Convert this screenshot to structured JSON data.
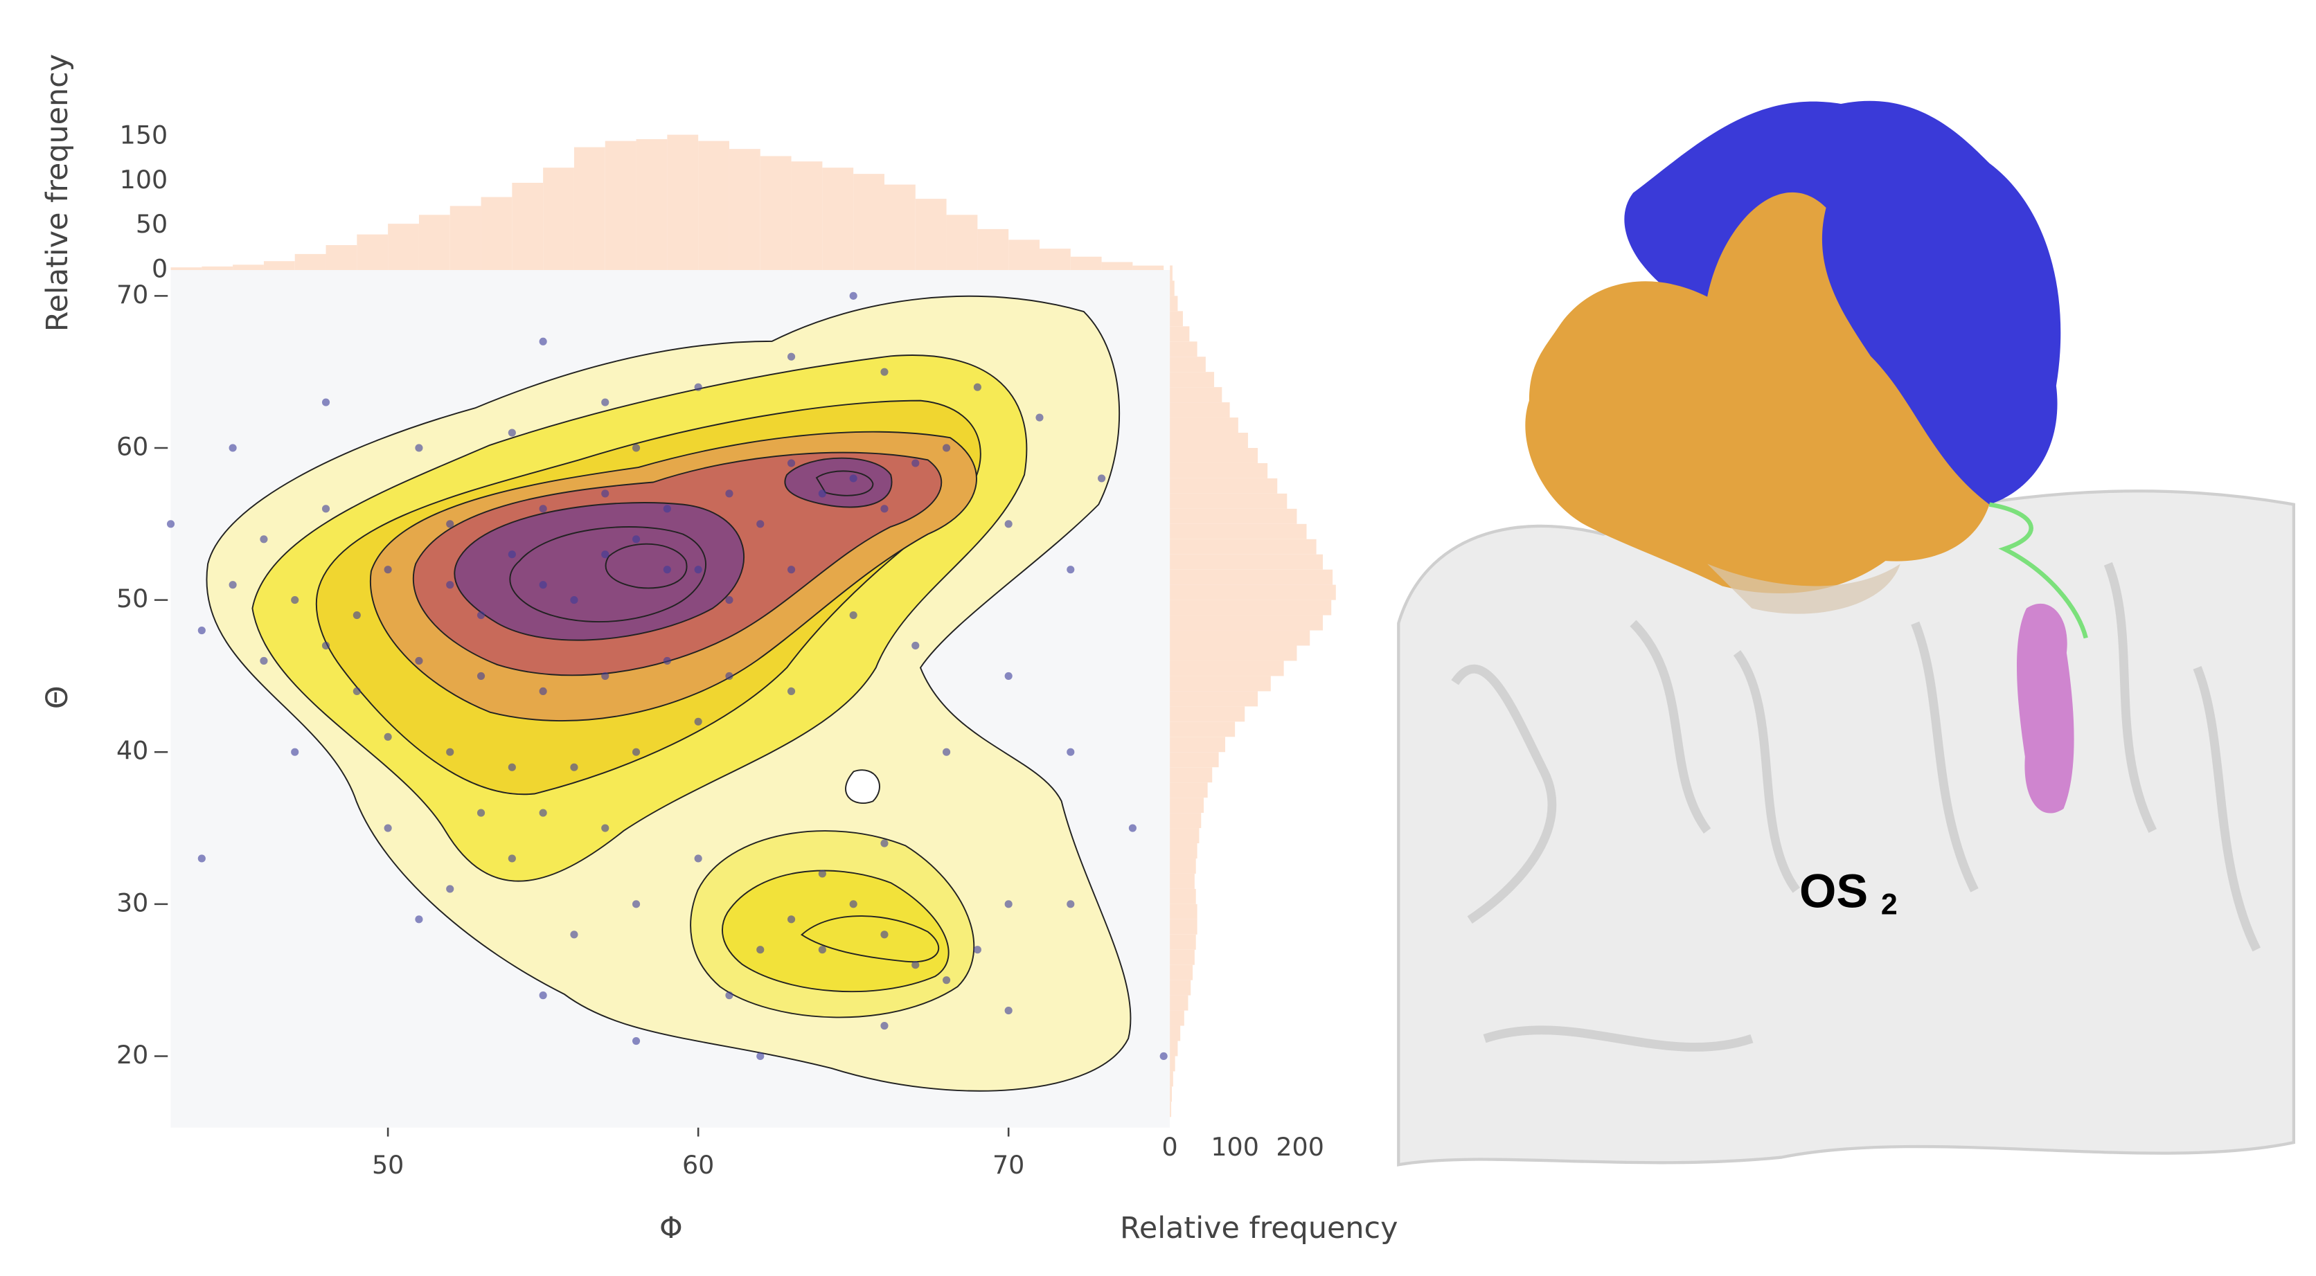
{
  "chart_data": [
    {
      "type": "scatter",
      "x_label": "Φ",
      "y_label": "Θ",
      "color": "#3c3c9a",
      "xlim": [
        43,
        75.2
      ],
      "ylim": [
        15.3,
        71.7
      ],
      "xticks": [
        50,
        60,
        70
      ],
      "yticks": [
        20,
        30,
        40,
        50,
        60,
        70
      ],
      "x": [
        59,
        57,
        55,
        56,
        58,
        60,
        61,
        54,
        53,
        52,
        62,
        64,
        65,
        66,
        67,
        68,
        63,
        61,
        59,
        57,
        55,
        52,
        50,
        49,
        48,
        47,
        46,
        51,
        53,
        55,
        57,
        59,
        61,
        63,
        60,
        58,
        56,
        54,
        52,
        50,
        64,
        66,
        67,
        65,
        63,
        62,
        68,
        69,
        70,
        61,
        64,
        60,
        58,
        56,
        54,
        52,
        55,
        53,
        57,
        66,
        71,
        73,
        72,
        69,
        66,
        63,
        60,
        57,
        54,
        51,
        48,
        46,
        45,
        44,
        49,
        47,
        50,
        51,
        55,
        58,
        62,
        66,
        70,
        72,
        74,
        75,
        45,
        48,
        55,
        65,
        44,
        43,
        70,
        72,
        68,
        67,
        65,
        63,
        70,
        58
      ],
      "values": [
        52,
        53,
        51,
        50,
        54,
        52,
        50,
        53,
        49,
        51,
        55,
        57,
        58,
        56,
        59,
        60,
        59,
        57,
        56,
        57,
        56,
        55,
        52,
        49,
        47,
        50,
        46,
        46,
        45,
        44,
        45,
        46,
        45,
        44,
        42,
        40,
        39,
        39,
        40,
        41,
        27,
        28,
        26,
        30,
        29,
        27,
        25,
        27,
        30,
        24,
        32,
        33,
        30,
        28,
        33,
        31,
        36,
        36,
        35,
        34,
        62,
        58,
        52,
        64,
        65,
        66,
        64,
        63,
        61,
        60,
        56,
        54,
        51,
        48,
        44,
        40,
        35,
        29,
        24,
        21,
        20,
        22,
        23,
        30,
        35,
        20,
        60,
        63,
        67,
        70,
        33,
        55,
        45,
        40,
        40,
        47,
        49,
        52,
        55,
        60
      ]
    },
    {
      "type": "histogram",
      "y_label": "Relative frequency",
      "color": "#fde2d0",
      "xlim": [
        43,
        75.2
      ],
      "ylim": [
        0,
        170
      ],
      "yticks": [
        0,
        50,
        100,
        150
      ],
      "bins": [
        43,
        44,
        45,
        46,
        47,
        48,
        49,
        50,
        51,
        52,
        53,
        54,
        55,
        56,
        57,
        58,
        59,
        60,
        61,
        62,
        63,
        64,
        65,
        66,
        67,
        68,
        69,
        70,
        71,
        72,
        73,
        74,
        75
      ],
      "values": [
        3,
        4,
        6,
        10,
        18,
        28,
        40,
        52,
        62,
        72,
        82,
        98,
        115,
        138,
        145,
        147,
        152,
        145,
        136,
        128,
        122,
        115,
        108,
        96,
        80,
        62,
        46,
        34,
        24,
        15,
        9,
        5
      ]
    },
    {
      "type": "histogram",
      "orientation": "horizontal",
      "x_label": "Relative frequency",
      "color": "#fde2d0",
      "ylim": [
        15.3,
        71.7
      ],
      "xlim": [
        0,
        260
      ],
      "xticks": [
        0,
        100,
        200
      ],
      "bins": [
        16,
        17,
        18,
        19,
        20,
        21,
        22,
        23,
        24,
        25,
        26,
        27,
        28,
        29,
        30,
        31,
        32,
        33,
        34,
        35,
        36,
        37,
        38,
        39,
        40,
        41,
        42,
        43,
        44,
        45,
        46,
        47,
        48,
        49,
        50,
        51,
        52,
        53,
        54,
        55,
        56,
        57,
        58,
        59,
        60,
        61,
        62,
        63,
        64,
        65,
        66,
        67,
        68,
        69,
        70,
        71,
        72
      ],
      "values": [
        2,
        3,
        5,
        8,
        12,
        16,
        22,
        28,
        32,
        35,
        38,
        40,
        42,
        42,
        40,
        38,
        40,
        42,
        45,
        48,
        52,
        58,
        65,
        75,
        85,
        100,
        115,
        135,
        155,
        175,
        195,
        215,
        235,
        248,
        255,
        250,
        235,
        225,
        210,
        195,
        180,
        165,
        150,
        135,
        120,
        105,
        92,
        80,
        68,
        55,
        42,
        30,
        20,
        12,
        7,
        4
      ]
    }
  ],
  "image": {
    "label": "OS",
    "subscript": "2"
  }
}
